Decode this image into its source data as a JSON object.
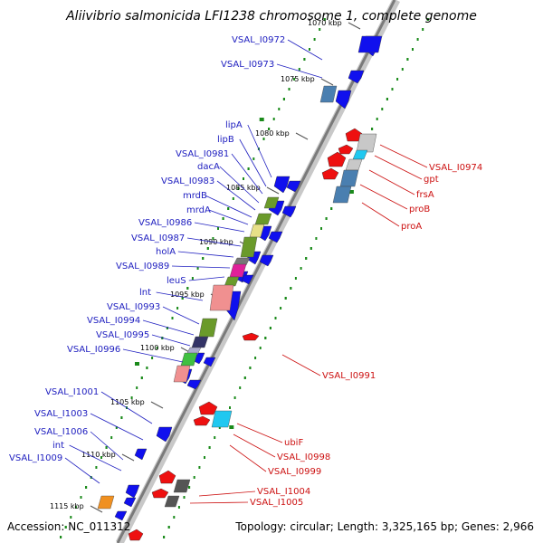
{
  "title": "Aliivibrio salmonicida LFI1238 chromosome 1, complete genome",
  "footer": {
    "accession": "Accession: NC_011312",
    "summary": "Topology: circular; Length: 3,325,165 bp; Genes: 2,966"
  },
  "colors": {
    "forward_gene": "#1010ee",
    "reverse_gene": "#ee1010",
    "forward_label": "#2020c0",
    "reverse_label": "#cc1010",
    "backbone": "#909090",
    "gc_dots": "#1a8a1a"
  },
  "kbp_ticks": [
    "1070 kbp",
    "1075 kbp",
    "1080 kbp",
    "1085 kbp",
    "1090 kbp",
    "1095 kbp",
    "1100 kbp",
    "1105 kbp",
    "1110 kbp",
    "1115 kbp"
  ],
  "forward_genes": [
    "VSAL_I0972",
    "VSAL_I0973",
    "lipA",
    "lipB",
    "VSAL_I0981",
    "dacA",
    "VSAL_I0983",
    "mrdB",
    "mrdA",
    "VSAL_I0986",
    "VSAL_I0987",
    "holA",
    "VSAL_I0989",
    "leuS",
    "lnt",
    "VSAL_I0993",
    "VSAL_I0994",
    "VSAL_I0995",
    "VSAL_I0996",
    "VSAL_I1001",
    "VSAL_I1003",
    "VSAL_I1006",
    "int",
    "VSAL_I1009"
  ],
  "reverse_genes": [
    "VSAL_I0974",
    "gpt",
    "frsA",
    "proB",
    "proA",
    "VSAL_I0991",
    "ubiF",
    "VSAL_I0998",
    "VSAL_I0999",
    "VSAL_I1004",
    "VSAL_I1005"
  ]
}
